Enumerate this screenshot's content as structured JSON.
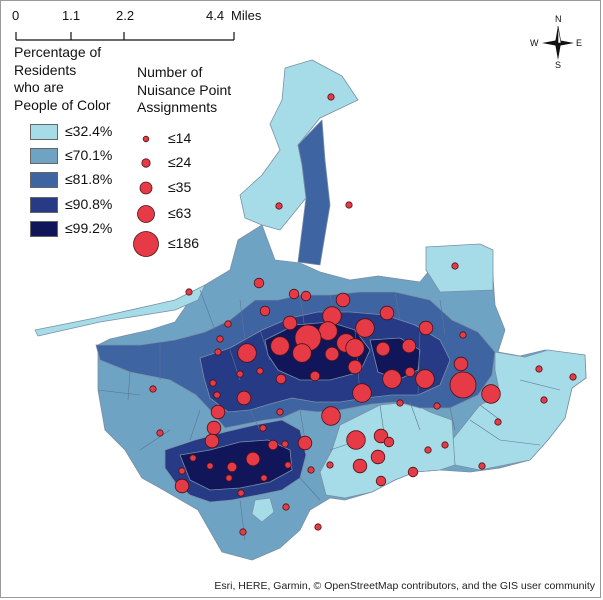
{
  "scale_bar": {
    "ticks": [
      "0",
      "1.1",
      "2.2",
      "4.4"
    ],
    "units": "Miles"
  },
  "legend": {
    "choropleth_title": [
      "Percentage of",
      "Residents",
      "who are",
      "People of Color"
    ],
    "choropleth_classes": [
      {
        "label": "≤32.4%",
        "color": "#a6dce8"
      },
      {
        "label": "≤70.1%",
        "color": "#6ea3c4"
      },
      {
        "label": "≤81.8%",
        "color": "#3f64a2"
      },
      {
        "label": "≤90.8%",
        "color": "#263a86"
      },
      {
        "label": "≤99.2%",
        "color": "#101659"
      }
    ],
    "symbol_title": [
      "Number of",
      "Nuisance Point",
      "Assignments"
    ],
    "symbol_classes": [
      {
        "label": "≤14",
        "value": 14
      },
      {
        "label": "≤24",
        "value": 24
      },
      {
        "label": "≤35",
        "value": 35
      },
      {
        "label": "≤63",
        "value": 63
      },
      {
        "label": "≤186",
        "value": 186
      }
    ],
    "symbol_color": "#e63b47"
  },
  "compass": {
    "n": "N",
    "s": "S",
    "e": "E",
    "w": "W"
  },
  "attribution": "Esri, HERE, Garmin, © OpenStreetMap contributors, and the GIS user community"
}
